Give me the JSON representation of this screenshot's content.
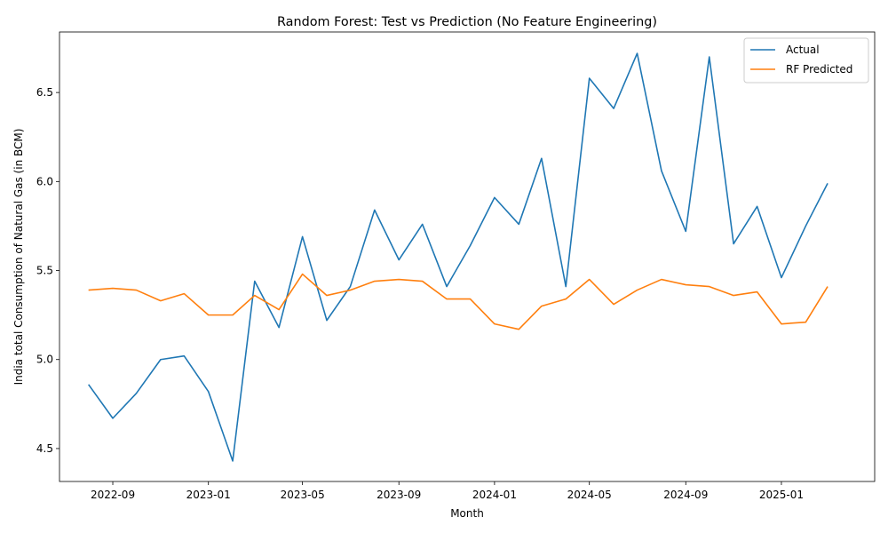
{
  "chart_data": {
    "type": "line",
    "title": "Random Forest: Test vs Prediction (No Feature Engineering)",
    "xlabel": "Month",
    "ylabel": "India total Consumption of Natural Gas (in BCM)",
    "x": [
      "2022-08",
      "2022-09",
      "2022-10",
      "2022-11",
      "2022-12",
      "2023-01",
      "2023-02",
      "2023-03",
      "2023-04",
      "2023-05",
      "2023-06",
      "2023-07",
      "2023-08",
      "2023-09",
      "2023-10",
      "2023-11",
      "2023-12",
      "2024-01",
      "2024-02",
      "2024-03",
      "2024-04",
      "2024-05",
      "2024-06",
      "2024-07",
      "2024-08",
      "2024-09",
      "2024-10",
      "2024-11",
      "2024-12",
      "2025-01",
      "2025-02",
      "2025-03"
    ],
    "x_ticks": [
      "2022-09",
      "2023-01",
      "2023-05",
      "2023-09",
      "2024-01",
      "2024-05",
      "2024-09",
      "2025-01"
    ],
    "x_range": [
      "2022-06-25",
      "2025-04-30"
    ],
    "y_ticks": [
      "4.5",
      "5.0",
      "5.5",
      "6.0",
      "6.5"
    ],
    "ylim": [
      4.315,
      6.84
    ],
    "grid": false,
    "legend_position": "upper right",
    "series": [
      {
        "name": "Actual",
        "color": "#1f77b4",
        "values": [
          4.86,
          4.67,
          4.81,
          5.0,
          5.02,
          4.82,
          4.43,
          5.44,
          5.18,
          5.69,
          5.22,
          5.41,
          5.84,
          5.56,
          5.76,
          5.41,
          5.64,
          5.91,
          5.76,
          6.13,
          5.41,
          6.58,
          6.41,
          6.72,
          6.06,
          5.72,
          6.7,
          5.65,
          5.86,
          5.46,
          5.75,
          5.99
        ]
      },
      {
        "name": "RF Predicted",
        "color": "#ff7f0e",
        "values": [
          5.39,
          5.4,
          5.39,
          5.33,
          5.37,
          5.25,
          5.25,
          5.36,
          5.28,
          5.48,
          5.36,
          5.39,
          5.44,
          5.45,
          5.44,
          5.34,
          5.34,
          5.2,
          5.17,
          5.3,
          5.34,
          5.45,
          5.31,
          5.39,
          5.45,
          5.42,
          5.41,
          5.36,
          5.38,
          5.2,
          5.21,
          5.41
        ]
      }
    ]
  }
}
